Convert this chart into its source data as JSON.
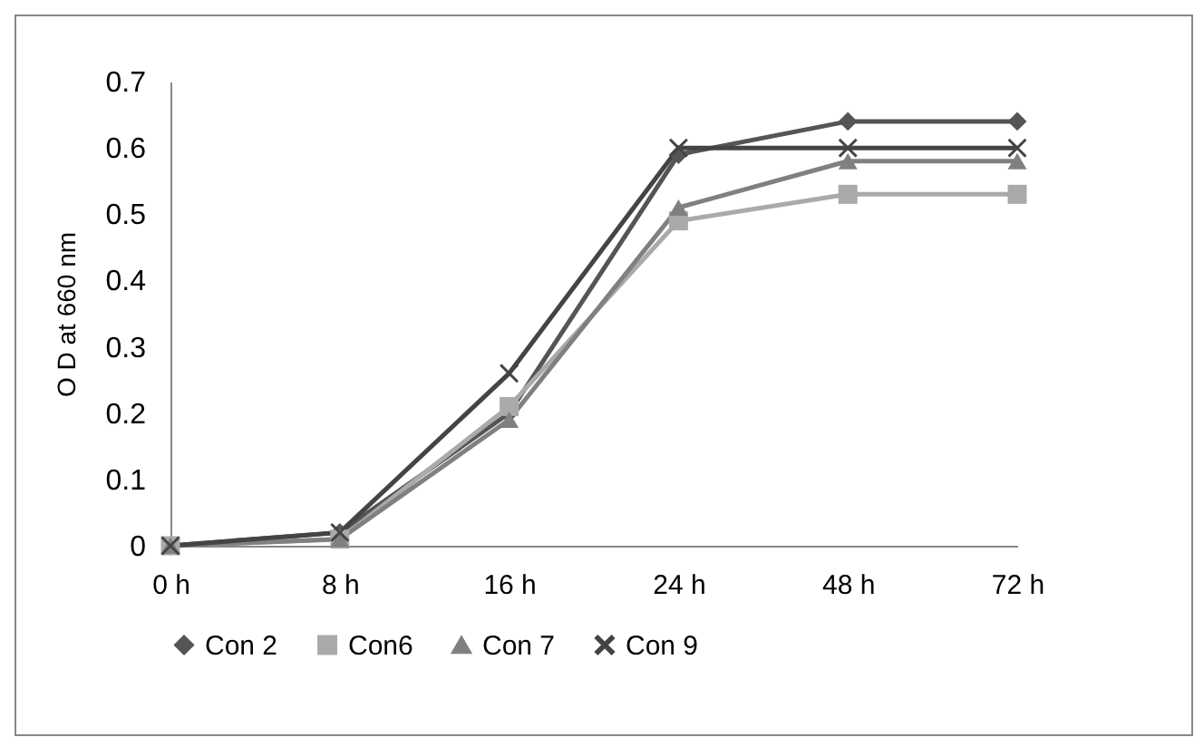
{
  "chart_data": {
    "type": "line",
    "ylabel": "O D at 660 nm",
    "categories": [
      "0 h",
      "8 h",
      "16 h",
      "24 h",
      "48 h",
      "72 h"
    ],
    "series": [
      {
        "name": "Con 2",
        "color": "#555555",
        "marker": "diamond",
        "values": [
          0,
          0.02,
          0.2,
          0.59,
          0.64,
          0.64
        ]
      },
      {
        "name": "Con6",
        "color": "#aaaaaa",
        "marker": "square",
        "values": [
          0,
          0.01,
          0.21,
          0.49,
          0.53,
          0.53
        ]
      },
      {
        "name": "Con 7",
        "color": "#808080",
        "marker": "triangle",
        "values": [
          0,
          0.01,
          0.19,
          0.51,
          0.58,
          0.58
        ]
      },
      {
        "name": "Con 9",
        "color": "#444444",
        "marker": "cross",
        "values": [
          0,
          0.02,
          0.26,
          0.6,
          0.6,
          0.6
        ]
      }
    ],
    "ylim": [
      0,
      0.7
    ],
    "yticks": [
      0,
      0.1,
      0.2,
      0.3,
      0.4,
      0.5,
      0.6,
      0.7
    ],
    "grid": false,
    "legend": "bottom"
  }
}
